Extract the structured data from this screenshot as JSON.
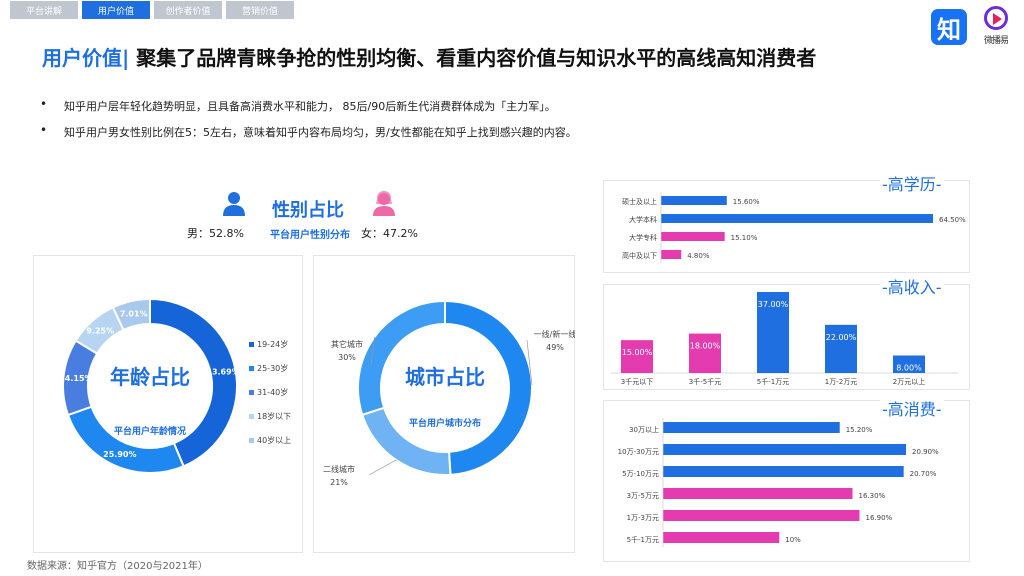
{
  "tabs": [
    "平台讲解",
    "用户价值",
    "创作者价值",
    "营销价值"
  ],
  "logos": {
    "zhihu": "知",
    "weiboyi_text": "微播易"
  },
  "title": {
    "highlight": "用户价值|",
    "rest": " 聚集了品牌青睐争抢的性别均衡、看重内容价值与知识水平的高线高知消费者"
  },
  "bullets": [
    "知乎用户层年轻化趋势明显，且具备高消费水平和能力， 85后/90后新生代消费群体成为「主力军」。",
    "知乎用户男女性别比例在5：5左右，意味着知乎内容布局均匀，男/女性都能在知乎上找到感兴趣的内容。"
  ],
  "gender": {
    "title": "性别占比",
    "subtitle": "平台用户性别分布",
    "male_label": "男：52.8%",
    "female_label": "女：47.2%",
    "icons": {
      "male": "male-user-icon",
      "female": "female-user-icon"
    },
    "colors": {
      "male": "#1f6fe0",
      "female": "#ee6aa7"
    }
  },
  "source": "数据来源：知乎官方（2020与2021年）",
  "colors": {
    "accent": "#1f6fe0",
    "pink": "#e53bb0"
  },
  "chart_data": [
    {
      "type": "pie",
      "id": "age",
      "title": "年龄占比",
      "subtitle": "平台用户年龄情况",
      "categories": [
        "19-24岁",
        "25-30岁",
        "31-40岁",
        "18岁以下",
        "40岁以上"
      ],
      "values": [
        43.69,
        25.9,
        14.15,
        9.25,
        7.01
      ],
      "labels": [
        "43.69%",
        "25.90%",
        "14.15%",
        "9.25%",
        "7.01%"
      ],
      "colors": [
        "#1565d8",
        "#1e88f0",
        "#4a7de0",
        "#b7d4f2",
        "#a8c8ee"
      ],
      "legend": "right"
    },
    {
      "type": "pie",
      "id": "city",
      "title": "城市占比",
      "subtitle": "平台用户城市分布",
      "categories": [
        "一线/新一线",
        "二线城市",
        "其它城市"
      ],
      "values": [
        49,
        21,
        30
      ],
      "labels": [
        "一线/新一线\n49%",
        "二线城市\n21%",
        "其它城市\n30%"
      ],
      "colors": [
        "#1e88f0",
        "#6fb3f5",
        "#3d9cf3"
      ]
    },
    {
      "type": "bar",
      "id": "education",
      "title": "-高学历-",
      "orientation": "horizontal",
      "categories": [
        "硕士及以上",
        "大学本科",
        "大学专科",
        "高中及以下"
      ],
      "values": [
        15.6,
        64.5,
        15.1,
        4.8
      ],
      "labels": [
        "15.60%",
        "64.50%",
        "15.10%",
        "4.80%"
      ],
      "colors": [
        "#1f6fe0",
        "#1f6fe0",
        "#e53bb0",
        "#e53bb0"
      ],
      "xlim": [
        0,
        64.5
      ]
    },
    {
      "type": "bar",
      "id": "income",
      "title": "-高收入-",
      "orientation": "vertical",
      "categories": [
        "3千元以下",
        "3千-5千元",
        "5千-1万元",
        "1万-2万元",
        "2万元以上"
      ],
      "values": [
        15.0,
        18.0,
        37.0,
        22.0,
        8.0
      ],
      "labels": [
        "15.00%",
        "18.00%",
        "37.00%",
        "22.00%",
        "8.00%"
      ],
      "colors": [
        "#e53bb0",
        "#e53bb0",
        "#1f6fe0",
        "#1f6fe0",
        "#1f6fe0"
      ],
      "ylim": [
        0,
        37
      ]
    },
    {
      "type": "bar",
      "id": "spending",
      "title": "-高消费-",
      "orientation": "horizontal",
      "categories": [
        "30万以上",
        "10万-30万元",
        "5万-10万元",
        "3万-5万元",
        "1万-3万元",
        "5千-1万元"
      ],
      "values": [
        15.2,
        20.9,
        20.7,
        16.3,
        16.9,
        10
      ],
      "labels": [
        "15.20%",
        "20.90%",
        "20.70%",
        "16.30%",
        "16.90%",
        "10%"
      ],
      "colors": [
        "#1f6fe0",
        "#1f6fe0",
        "#1f6fe0",
        "#e53bb0",
        "#e53bb0",
        "#e53bb0"
      ],
      "xlim": [
        0,
        20.9
      ]
    }
  ]
}
